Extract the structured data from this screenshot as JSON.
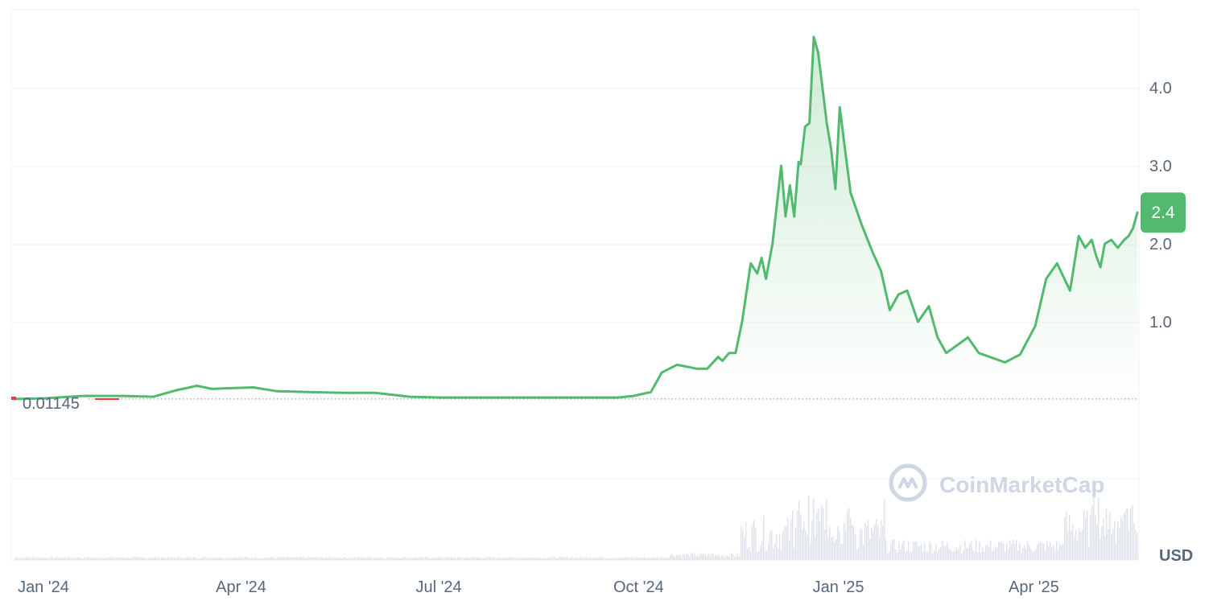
{
  "chart_data": {
    "type": "area",
    "currency_label": "USD",
    "watermark": "CoinMarketCap",
    "start_price_label": "0.01145",
    "start_price": 0.01145,
    "current_price_label": "2.4",
    "current_price": 2.4,
    "x_ticks": [
      "Jan '24",
      "Apr '24",
      "Jul '24",
      "Oct '24",
      "Jan '25",
      "Apr '25"
    ],
    "x_tick_dates": [
      "2024-01-01",
      "2024-04-01",
      "2024-07-01",
      "2024-10-01",
      "2025-01-01",
      "2025-04-01"
    ],
    "y_ticks": [
      "1.0",
      "2.0",
      "3.0",
      "4.0"
    ],
    "y_tick_values": [
      1.0,
      2.0,
      3.0,
      4.0
    ],
    "grid": true,
    "colors": {
      "line": "#52b96f",
      "area": "#52b96f",
      "start_marker": "#ea3943",
      "grid": "#eef0f3",
      "tick_text": "#58667e",
      "baseline": "#9aa3b0",
      "volume": "#dfe2e8",
      "watermark": "#cfd6e4",
      "badge_text": "#ffffff"
    },
    "series": [
      {
        "x": [
          "2024-01-01",
          "2024-01-15",
          "2024-02-01",
          "2024-02-20",
          "2024-03-05",
          "2024-03-15",
          "2024-03-25",
          "2024-04-01",
          "2024-04-10",
          "2024-04-20",
          "2024-05-01",
          "2024-05-15",
          "2024-06-01",
          "2024-06-15",
          "2024-07-01",
          "2024-07-15",
          "2024-08-01",
          "2024-08-15",
          "2024-09-01",
          "2024-09-20",
          "2024-10-05",
          "2024-10-12",
          "2024-10-20",
          "2024-10-25",
          "2024-11-01",
          "2024-11-10",
          "2024-11-15",
          "2024-11-20",
          "2024-11-22",
          "2024-11-25",
          "2024-11-28",
          "2024-12-01",
          "2024-12-05",
          "2024-12-08",
          "2024-12-10",
          "2024-12-12",
          "2024-12-15",
          "2024-12-17",
          "2024-12-19",
          "2024-12-21",
          "2024-12-23",
          "2024-12-25",
          "2024-12-27",
          "2024-12-28",
          "2024-12-30",
          "2025-01-01",
          "2025-01-03",
          "2025-01-05",
          "2025-01-07",
          "2025-01-09",
          "2025-01-11",
          "2025-01-13",
          "2025-01-15",
          "2025-01-17",
          "2025-01-20",
          "2025-01-25",
          "2025-01-30",
          "2025-02-03",
          "2025-02-07",
          "2025-02-11",
          "2025-02-15",
          "2025-02-20",
          "2025-02-25",
          "2025-03-01",
          "2025-03-05",
          "2025-03-10",
          "2025-03-15",
          "2025-03-20",
          "2025-03-25",
          "2025-04-01",
          "2025-04-08",
          "2025-04-15",
          "2025-04-20",
          "2025-04-25",
          "2025-05-01",
          "2025-05-05",
          "2025-05-08",
          "2025-05-11",
          "2025-05-13",
          "2025-05-15",
          "2025-05-17",
          "2025-05-20",
          "2025-05-23",
          "2025-05-26",
          "2025-05-28",
          "2025-05-30",
          "2025-06-01"
        ],
        "values": [
          0.01145,
          0.02,
          0.05,
          0.05,
          0.04,
          0.12,
          0.18,
          0.14,
          0.15,
          0.16,
          0.11,
          0.1,
          0.09,
          0.09,
          0.04,
          0.03,
          0.03,
          0.03,
          0.03,
          0.03,
          0.03,
          0.05,
          0.1,
          0.35,
          0.45,
          0.4,
          0.4,
          0.55,
          0.5,
          0.6,
          0.6,
          1.0,
          1.75,
          1.62,
          1.82,
          1.55,
          2.0,
          2.5,
          3.0,
          2.35,
          2.75,
          2.35,
          3.05,
          3.02,
          3.5,
          3.55,
          4.65,
          4.45,
          4.0,
          3.55,
          3.22,
          2.7,
          3.75,
          3.3,
          2.65,
          2.25,
          1.9,
          1.65,
          1.15,
          1.35,
          1.4,
          1.0,
          1.2,
          0.8,
          0.6,
          0.7,
          0.8,
          0.6,
          0.55,
          0.48,
          0.58,
          0.95,
          1.55,
          1.75,
          1.4,
          2.1,
          1.95,
          2.05,
          1.85,
          1.7,
          2.0,
          2.05,
          1.95,
          2.05,
          2.1,
          2.2,
          2.4
        ]
      }
    ]
  }
}
